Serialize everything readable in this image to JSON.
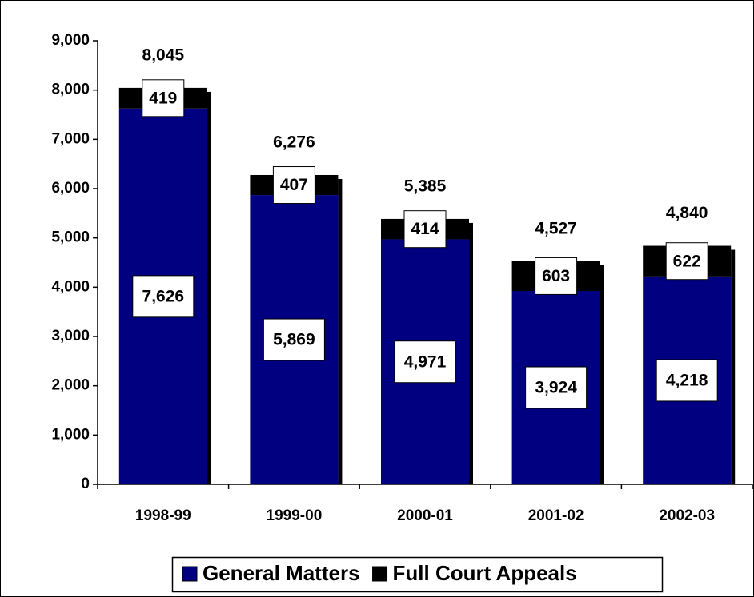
{
  "chart_data": {
    "type": "stacked_bar",
    "categories": [
      "1998-99",
      "1999-00",
      "2000-01",
      "2001-02",
      "2002-03"
    ],
    "series": [
      {
        "name": "General Matters",
        "color": "#000080",
        "values": [
          7626,
          5869,
          4971,
          3924,
          4218
        ],
        "value_labels": [
          "7,626",
          "5,869",
          "4,971",
          "3,924",
          "4,218"
        ]
      },
      {
        "name": "Full Court Appeals",
        "color": "#000000",
        "values": [
          419,
          407,
          414,
          603,
          622
        ]
      }
    ],
    "totals": [
      8045,
      6276,
      5385,
      4527,
      4840
    ],
    "total_labels": [
      "8,045",
      "6,276",
      "5,385",
      "4,527",
      "4,840"
    ],
    "ylim": [
      0,
      9000
    ],
    "yticks": [
      0,
      {
        "value": 1000,
        "label": "1,000"
      },
      {
        "value": 2000,
        "label": "2,000"
      },
      {
        "value": 3000,
        "label": "3,000"
      },
      {
        "value": 4000,
        "label": "4,000"
      },
      {
        "value": 5000,
        "label": "5,000"
      },
      {
        "value": 6000,
        "label": "6,000"
      },
      {
        "value": 7000,
        "label": "7,000"
      },
      {
        "value": 8000,
        "label": "8,000"
      },
      {
        "value": 9000,
        "label": "9,000"
      }
    ],
    "legend": "bottom"
  }
}
